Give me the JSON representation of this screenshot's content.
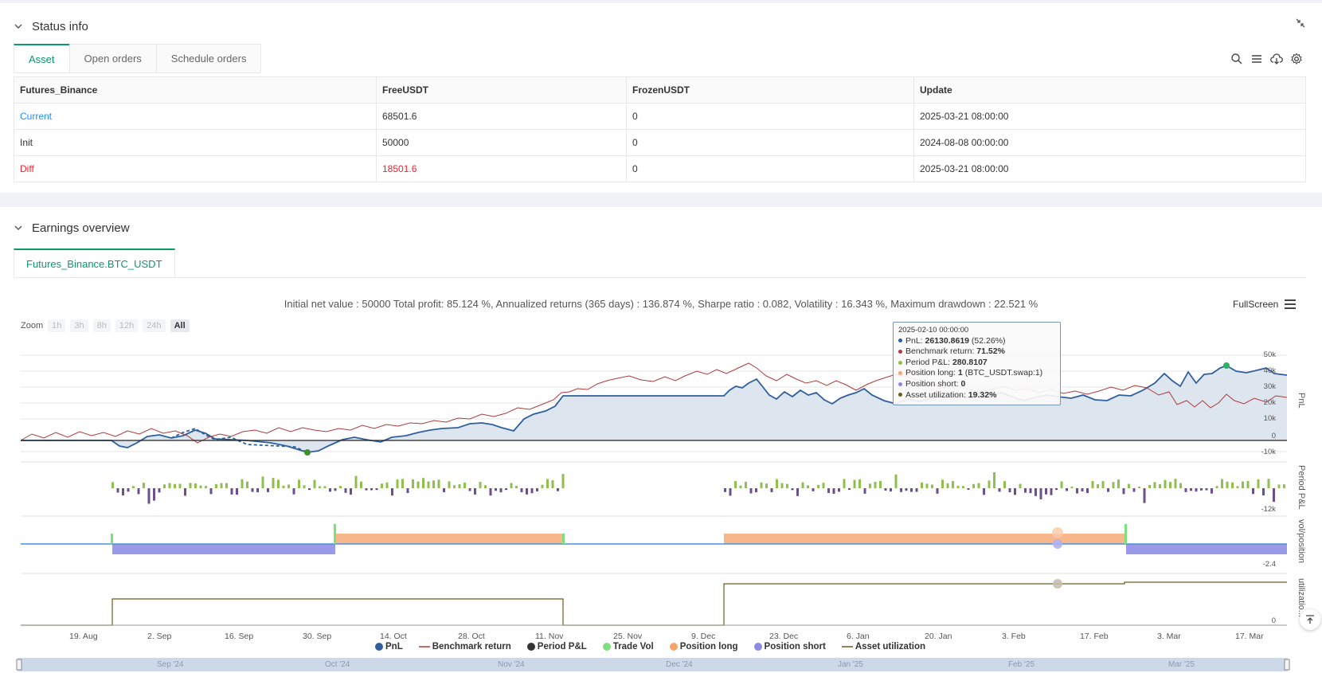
{
  "status": {
    "title": "Status info",
    "tabs": [
      "Asset",
      "Open orders",
      "Schedule orders"
    ],
    "table": {
      "headers": [
        "Futures_Binance",
        "FreeUSDT",
        "FrozenUSDT",
        "Update"
      ],
      "rows": [
        [
          "Current",
          "68501.6",
          "0",
          "2025-03-21 08:00:00"
        ],
        [
          "Init",
          "50000",
          "0",
          "2024-08-08 00:00:00"
        ],
        [
          "Diff",
          "18501.6",
          "0",
          "2025-03-21 08:00:00"
        ]
      ]
    }
  },
  "earnings": {
    "title": "Earnings overview",
    "tab": "Futures_Binance.BTC_USDT",
    "stats": "Initial net value : 50000 Total profit: 85.124 %, Annualized returns (365 days) : 136.874 %, Sharpe ratio : 0.082, Volatility : 16.343 %, Maximum drawdown : 22.521 %",
    "fullscreen": "FullScreen",
    "zoom": {
      "label": "Zoom",
      "options": [
        "1h",
        "3h",
        "8h",
        "12h",
        "24h",
        "All"
      ],
      "active": "All"
    },
    "tooltip": {
      "date": "2025-02-10 00:00:00",
      "pnl_label": "PnL: ",
      "pnl_value": "26130.8619",
      "pnl_pct": " (52.26%)",
      "bench_label": "Benchmark return: ",
      "bench_value": "71.52%",
      "period_label": "Period P&L: ",
      "period_value": "280.8107",
      "long_label": "Position long: ",
      "long_value": "1",
      "long_extra": " (BTC_USDT.swap:1)",
      "short_label": "Position short: ",
      "short_value": "0",
      "util_label": "Asset utilization: ",
      "util_value": "19.32%"
    },
    "yaxis": {
      "pnl": [
        "50k",
        "40k",
        "30k",
        "20k",
        "10k",
        "0",
        "-10k"
      ],
      "period": "-12k",
      "position": "-2.4",
      "util": "0"
    },
    "axis_titles": [
      "PnL",
      "Period P&L",
      "vol/position",
      "utilizatio..."
    ],
    "xaxis": [
      "19. Aug",
      "2. Sep",
      "16. Sep",
      "30. Sep",
      "14. Oct",
      "28. Oct",
      "11. Nov",
      "25. Nov",
      "9. Dec",
      "23. Dec",
      "6. Jan",
      "20. Jan",
      "3. Feb",
      "17. Feb",
      "3. Mar",
      "17. Mar"
    ],
    "navigator": [
      "Sep '24",
      "Oct '24",
      "Nov '24",
      "Dec '24",
      "Jan '25",
      "Feb '25",
      "Mar '25"
    ],
    "legend": [
      "PnL",
      "Benchmark return",
      "Period P&L",
      "Trade Vol",
      "Position long",
      "Position short",
      "Asset utilization"
    ],
    "colors": {
      "pnl": "#2f5f9e",
      "benchmark": "#b03a3a",
      "period_up": "#8fbf4f",
      "period_down": "#6b4f8f",
      "long": "#f7b78a",
      "short": "#9a9ae8",
      "util": "#6b5a1e",
      "accent": "#0a9a6a"
    }
  }
}
